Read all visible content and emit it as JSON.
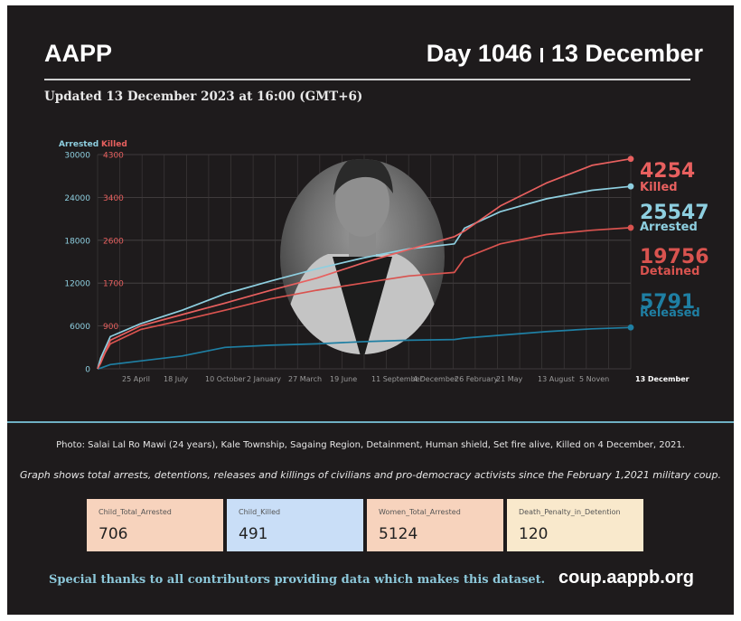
{
  "header": {
    "org": "AAPP",
    "day_label": "Day 1046",
    "date_label": "13 December",
    "updated": "Updated 13 December 2023 at 16:00 (GMT+6)"
  },
  "colors": {
    "background": "#1e1b1c",
    "arrested": "#8ecfe0",
    "killed": "#e8605f",
    "detained": "#d9534f",
    "released": "#1f7fa3"
  },
  "photo_icon": "portrait-photo",
  "chart_data": {
    "type": "line",
    "title": "",
    "axis_left_label": "Arrested",
    "axis_right_label": "Killed",
    "y_arrested_ticks": [
      "0",
      "6000",
      "12000",
      "18000",
      "24000",
      "30000"
    ],
    "y_killed_ticks": [
      "900",
      "1700",
      "2600",
      "3400",
      "4300"
    ],
    "ylim_arrested": [
      0,
      30000
    ],
    "ylim_killed": [
      0,
      4300
    ],
    "grid": true,
    "x_tick_labels": [
      "25 April",
      "18 July",
      "10 October",
      "2 January",
      "27 March",
      "19 June",
      "11 September",
      "4 December",
      "26 February",
      "21 May",
      "13 August",
      "5 Noven",
      "13 December"
    ],
    "x": [
      0,
      6,
      25,
      84,
      166,
      250,
      340,
      430,
      520,
      610,
      700,
      720,
      790,
      880,
      970,
      1046
    ],
    "series": [
      {
        "name": "Arrested",
        "axis": "left",
        "color": "#8ecfe0",
        "label_value": "25547",
        "label_text": "Arrested",
        "values": [
          0,
          1500,
          4500,
          6300,
          8200,
          10500,
          12300,
          14000,
          15500,
          16800,
          17500,
          19700,
          22000,
          23800,
          25000,
          25547
        ]
      },
      {
        "name": "Killed",
        "axis": "left",
        "color": "#e8605f",
        "label_value": "4254",
        "label_text": "Killed",
        "values": [
          0,
          800,
          4000,
          6000,
          7600,
          9200,
          11000,
          12700,
          14800,
          16700,
          18500,
          19300,
          22800,
          26000,
          28500,
          29400
        ]
      },
      {
        "name": "Detained",
        "axis": "left",
        "color": "#d9534f",
        "label_value": "19756",
        "label_text": "Detained",
        "values": [
          0,
          1200,
          3500,
          5500,
          6800,
          8200,
          9800,
          11000,
          12000,
          13000,
          13500,
          15500,
          17500,
          18800,
          19400,
          19756
        ]
      },
      {
        "name": "Released",
        "axis": "left",
        "color": "#1f7fa3",
        "label_value": "5791",
        "label_text": "Released",
        "values": [
          0,
          100,
          600,
          1100,
          1800,
          3000,
          3300,
          3500,
          3800,
          4000,
          4100,
          4300,
          4700,
          5200,
          5600,
          5791
        ]
      }
    ]
  },
  "caption": "Photo: Salai Lal Ro Mawi (24 years), Kale Township, Sagaing Region, Detainment, Human shield, Set fire alive, Killed on 4 December, 2021.",
  "subcaption": "Graph shows total arrests, detentions, releases and killings of civilians and pro-democracy activists since the February 1,2021 military coup.",
  "stats": [
    {
      "label": "Child_Total_Arrested",
      "value": "706",
      "color": "#f7d3bd"
    },
    {
      "label": "Child_Killed",
      "value": "491",
      "color": "#c9def7"
    },
    {
      "label": "Women_Total_Arrested",
      "value": "5124",
      "color": "#f7d3bd"
    },
    {
      "label": "Death_Penalty_in_Detention",
      "value": "120",
      "color": "#f9e9cc"
    }
  ],
  "footer": {
    "thanks": "Special thanks to all contributors providing data which makes this dataset.",
    "site": "coup.aappb.org"
  }
}
